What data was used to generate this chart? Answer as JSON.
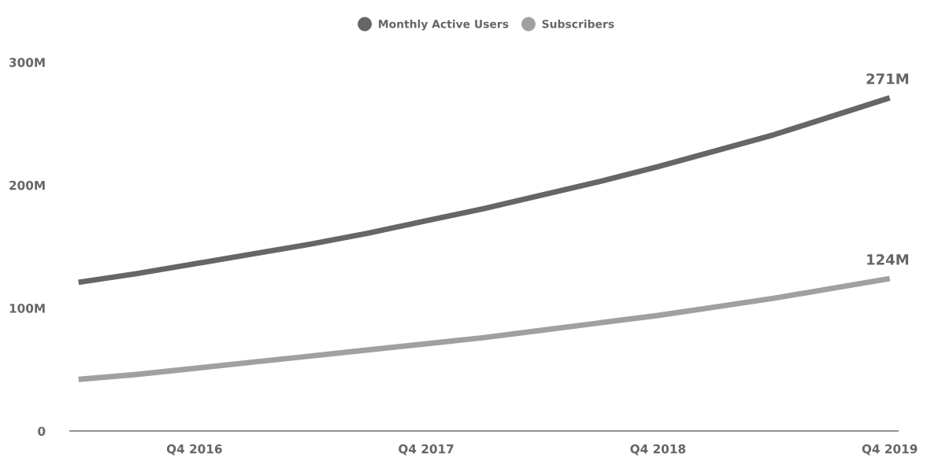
{
  "chart_data": {
    "type": "line",
    "categories": [
      null,
      null,
      "Q4 2016",
      null,
      null,
      null,
      "Q4 2017",
      null,
      null,
      null,
      "Q4 2018",
      null,
      null,
      null,
      "Q4 2019"
    ],
    "series": [
      {
        "name": "Monthly Active Users",
        "color": "#666666",
        "values": [
          121,
          128,
          136,
          144,
          152,
          161,
          171,
          181,
          192,
          203,
          215,
          228,
          241,
          256,
          271
        ],
        "value_labels": [
          null,
          null,
          null,
          null,
          null,
          null,
          null,
          null,
          null,
          null,
          null,
          null,
          null,
          null,
          "271M"
        ]
      },
      {
        "name": "Subscribers",
        "color": "#a0a0a0",
        "values": [
          42,
          46,
          51,
          56,
          61,
          66,
          71,
          76,
          82,
          88,
          94,
          101,
          108,
          116,
          124
        ],
        "value_labels": [
          null,
          null,
          null,
          null,
          null,
          null,
          null,
          null,
          null,
          null,
          null,
          null,
          null,
          null,
          "124M"
        ]
      }
    ],
    "ylim": [
      0,
      300
    ],
    "yticks": [
      {
        "value": 0,
        "label": "0"
      },
      {
        "value": 100,
        "label": "100M"
      },
      {
        "value": 200,
        "label": "200M"
      },
      {
        "value": 300,
        "label": "300M"
      }
    ],
    "grid": false,
    "legend": "top",
    "marker": "none",
    "line_style": "solid"
  }
}
